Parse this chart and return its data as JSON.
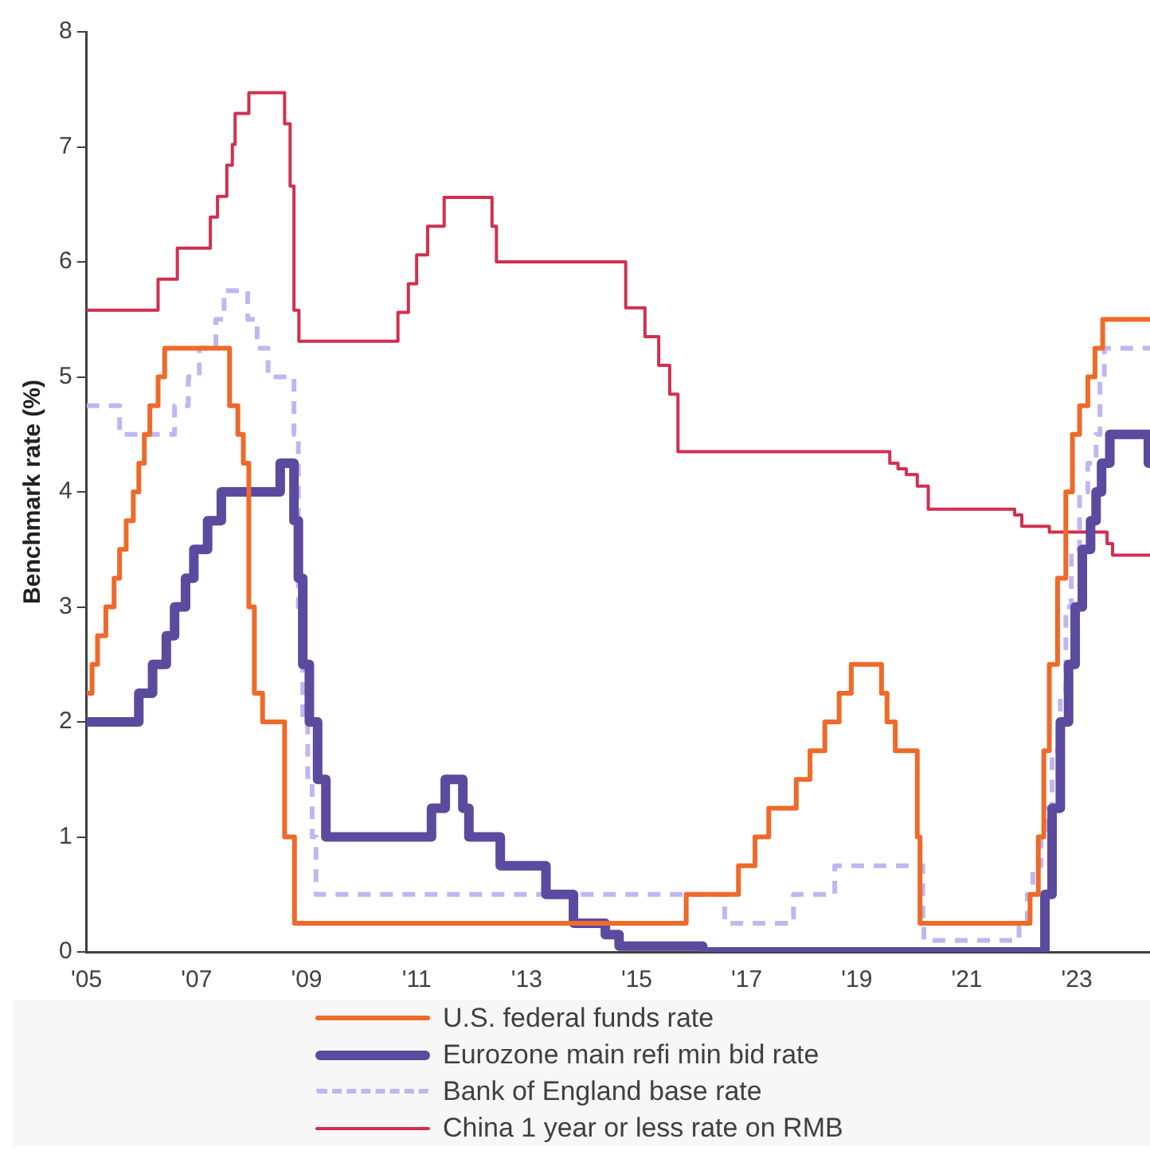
{
  "chart_data": {
    "type": "step",
    "ylabel": "Benchmark rate (%)",
    "xlim": [
      2005,
      2024.33
    ],
    "xticks": [
      {
        "value": 2005,
        "label": "'05"
      },
      {
        "value": 2007,
        "label": "'07"
      },
      {
        "value": 2009,
        "label": "'09"
      },
      {
        "value": 2011,
        "label": "'11"
      },
      {
        "value": 2013,
        "label": "'13"
      },
      {
        "value": 2015,
        "label": "'15"
      },
      {
        "value": 2017,
        "label": "'17"
      },
      {
        "value": 2019,
        "label": "'19"
      },
      {
        "value": 2021,
        "label": "'21"
      },
      {
        "value": 2023,
        "label": "'23"
      }
    ],
    "ylim": [
      0,
      8
    ],
    "yticks": [
      0,
      1,
      2,
      3,
      4,
      5,
      6,
      7,
      8
    ],
    "grid": false,
    "legend": "bottom",
    "series": [
      {
        "name": "U.S. federal funds rate",
        "color": "#ee6a2a",
        "line_style": "solid",
        "x": [
          2005,
          2005.1,
          2005.2,
          2005.35,
          2005.5,
          2005.6,
          2005.72,
          2005.85,
          2005.95,
          2006.05,
          2006.15,
          2006.3,
          2006.42,
          2007.6,
          2007.75,
          2007.85,
          2007.95,
          2008.05,
          2008.2,
          2008.6,
          2008.78,
          2015.9,
          2016.85,
          2017.15,
          2017.4,
          2017.9,
          2018.15,
          2018.42,
          2018.68,
          2018.9,
          2019.45,
          2019.55,
          2019.7,
          2020.1,
          2020.15,
          2022.15,
          2022.3,
          2022.4,
          2022.5,
          2022.65,
          2022.8,
          2022.92,
          2023.05,
          2023.2,
          2023.33,
          2023.47,
          2024.33
        ],
        "values": [
          2.25,
          2.5,
          2.75,
          3.0,
          3.25,
          3.5,
          3.75,
          4.0,
          4.25,
          4.5,
          4.75,
          5.0,
          5.25,
          4.75,
          4.5,
          4.25,
          3.0,
          2.25,
          2.0,
          1.0,
          0.25,
          0.5,
          0.75,
          1.0,
          1.25,
          1.5,
          1.75,
          2.0,
          2.25,
          2.5,
          2.25,
          2.0,
          1.75,
          1.0,
          0.25,
          0.5,
          1.0,
          1.75,
          2.5,
          3.25,
          4.0,
          4.5,
          4.75,
          5.0,
          5.25,
          5.5,
          5.5
        ]
      },
      {
        "name": "Eurozone main refi min bid rate",
        "color": "#5b4a9e",
        "line_style": "solid",
        "x": [
          2005,
          2005.95,
          2006.2,
          2006.45,
          2006.6,
          2006.8,
          2006.95,
          2007.2,
          2007.45,
          2008.52,
          2008.77,
          2008.85,
          2008.93,
          2009.05,
          2009.2,
          2009.35,
          2011.27,
          2011.52,
          2011.84,
          2011.95,
          2012.52,
          2013.35,
          2013.85,
          2014.43,
          2014.68,
          2016.2,
          2022.42,
          2022.55,
          2022.7,
          2022.85,
          2022.97,
          2023.1,
          2023.25,
          2023.35,
          2023.45,
          2023.6,
          2024.3,
          2024.33
        ],
        "values": [
          2.0,
          2.25,
          2.5,
          2.75,
          3.0,
          3.25,
          3.5,
          3.75,
          4.0,
          4.25,
          3.75,
          3.25,
          2.5,
          2.0,
          1.5,
          1.0,
          1.25,
          1.5,
          1.25,
          1.0,
          0.75,
          0.5,
          0.25,
          0.15,
          0.05,
          0,
          0.5,
          1.25,
          2.0,
          2.5,
          3.0,
          3.5,
          3.75,
          4.0,
          4.25,
          4.5,
          4.25,
          4.25
        ]
      },
      {
        "name": "Bank of England base rate",
        "color": "#c0b6f2",
        "line_style": "dashed",
        "x": [
          2005,
          2005.6,
          2006.6,
          2006.85,
          2007.05,
          2007.35,
          2007.5,
          2007.93,
          2008.1,
          2008.3,
          2008.77,
          2008.85,
          2008.93,
          2009.02,
          2009.1,
          2009.17,
          2016.6,
          2017.85,
          2018.6,
          2020.2,
          2020.22,
          2021.95,
          2022.1,
          2022.2,
          2022.35,
          2022.45,
          2022.55,
          2022.7,
          2022.8,
          2022.9,
          2023.05,
          2023.2,
          2023.35,
          2023.42,
          2023.5,
          2024.33
        ],
        "values": [
          4.75,
          4.5,
          4.75,
          5.0,
          5.25,
          5.5,
          5.75,
          5.5,
          5.25,
          5.0,
          4.5,
          3.0,
          2.0,
          1.5,
          1.0,
          0.5,
          0.25,
          0.5,
          0.75,
          0.25,
          0.1,
          0.25,
          0.5,
          0.75,
          1.0,
          1.25,
          1.75,
          2.25,
          3.0,
          3.5,
          4.0,
          4.25,
          4.5,
          5.0,
          5.25,
          5.25
        ]
      },
      {
        "name": "China 1 year or less rate on RMB",
        "color": "#d0304f",
        "line_style": "solid",
        "x": [
          2005,
          2006.3,
          2006.65,
          2007.25,
          2007.38,
          2007.55,
          2007.65,
          2007.7,
          2007.95,
          2008.6,
          2008.7,
          2008.77,
          2008.86,
          2010.66,
          2010.85,
          2011.0,
          2011.2,
          2011.5,
          2012.37,
          2012.45,
          2014.8,
          2015.15,
          2015.4,
          2015.6,
          2015.75,
          2019.6,
          2019.75,
          2019.9,
          2020.1,
          2020.3,
          2021.87,
          2022.0,
          2022.5,
          2023.55,
          2023.65,
          2024.33
        ],
        "values": [
          5.58,
          5.85,
          6.12,
          6.39,
          6.57,
          6.84,
          7.02,
          7.29,
          7.47,
          7.2,
          6.66,
          5.58,
          5.31,
          5.56,
          5.81,
          6.06,
          6.31,
          6.56,
          6.31,
          6.0,
          5.6,
          5.35,
          5.1,
          4.85,
          4.35,
          4.25,
          4.2,
          4.15,
          4.05,
          3.85,
          3.8,
          3.7,
          3.65,
          3.55,
          3.45,
          3.45
        ]
      }
    ]
  }
}
